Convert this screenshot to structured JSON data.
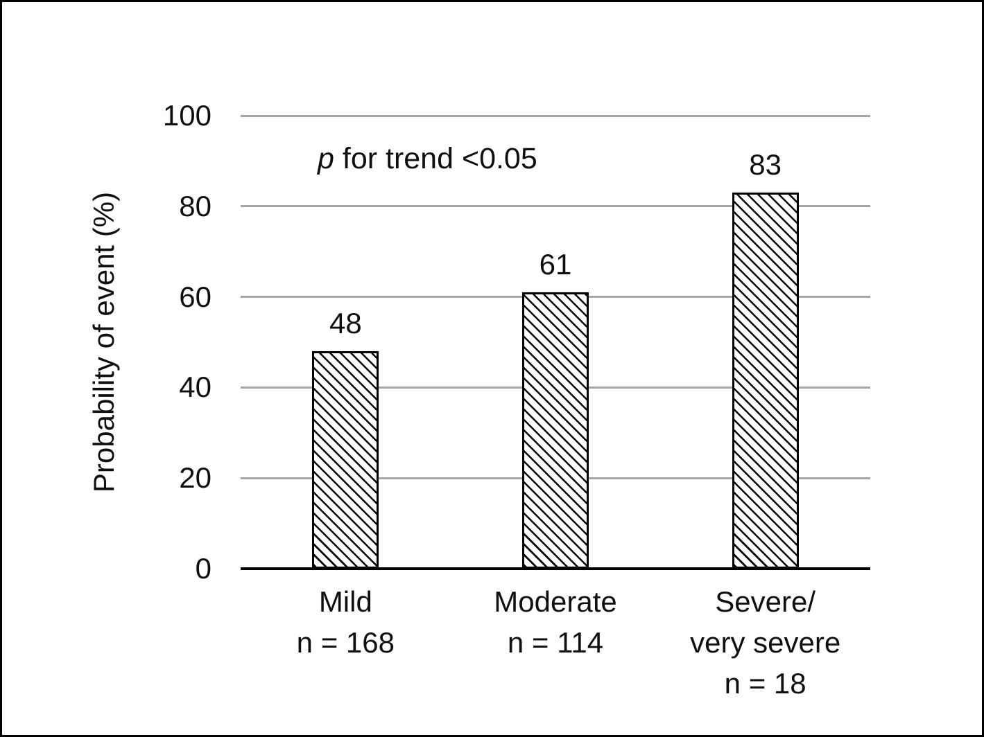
{
  "figure": {
    "background": "#ffffff",
    "border_color": "#000000"
  },
  "chart_data": {
    "type": "bar",
    "title": "",
    "ylabel": "Probability of event (%)",
    "xlabel": "",
    "ylim": [
      0,
      100
    ],
    "yticks": [
      0,
      20,
      40,
      60,
      80,
      100
    ],
    "ytick_labels": [
      "0",
      "20",
      "40",
      "60",
      "80",
      "100"
    ],
    "grid": "horizontal",
    "legend": "none",
    "annotation": {
      "text": "p for trend <0.05",
      "italic_part": "p",
      "regular_part": " for trend <0.05"
    },
    "categories": [
      "Mild\nn = 168",
      "Moderate\nn = 114",
      "Severe/\nvery severe\nn = 18"
    ],
    "category_lines": [
      [
        "Mild",
        "n = 168"
      ],
      [
        "Moderate",
        "n = 114"
      ],
      [
        "Severe/",
        "very severe",
        "n = 18"
      ]
    ],
    "values": [
      48,
      61,
      83
    ],
    "value_labels": [
      "48",
      "61",
      "83"
    ],
    "sample_sizes": [
      168,
      114,
      18
    ],
    "bar_fill_pattern": "diagonal-hatch",
    "colors": {
      "hatch": "#000000",
      "bar_background": "#ffffff",
      "bar_border": "#000000",
      "gridline": "#a6a6a6",
      "axis": "#000000",
      "text": "#0f0f0f"
    }
  }
}
